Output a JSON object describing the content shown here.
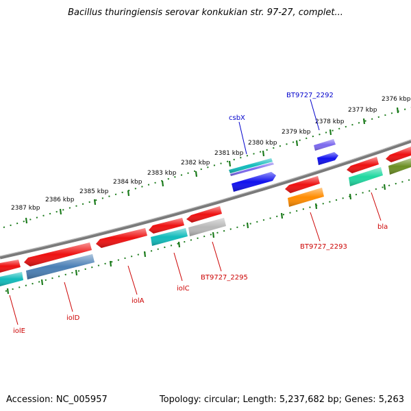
{
  "title": "Bacillus thuringiensis serovar konkukian str. 97-27, complet...",
  "footer": {
    "accession": "Accession: NC_005957",
    "summary": "Topology: circular; Length: 5,237,682 bp; Genes: 5,263"
  },
  "scale_labels": [
    "2387 kbp",
    "2386 kbp",
    "2385 kbp",
    "2384 kbp",
    "2383 kbp",
    "2382 kbp",
    "2381 kbp",
    "2380 kbp",
    "2379 kbp",
    "2378 kbp",
    "2377 kbp",
    "2376 kbp"
  ],
  "gene_labels": {
    "csbX": "csbX",
    "bt2292": "BT9727_2292",
    "bt2293": "BT9727_2293",
    "bla": "bla",
    "bt2295": "BT9727_2295",
    "iolC": "iolC",
    "iolA": "iolA",
    "iolD": "iolD",
    "iolE": "iolE"
  },
  "colors": {
    "backbone": "#808080",
    "forward_ticks": "#1a7a1a",
    "label_forward": "#0000cc",
    "label_reverse": "#cc0000",
    "gene_red": "#ee1111",
    "gene_blue": "#1010ee",
    "gene_cyan": "#11bbbb",
    "gene_steelblue": "#4a7fb5",
    "gene_orange": "#ff8c00",
    "gene_silver": "#b8b8b8",
    "gene_teal": "#20d8a0",
    "gene_olive": "#6b8e23",
    "gene_slate": "#7b68ee"
  }
}
